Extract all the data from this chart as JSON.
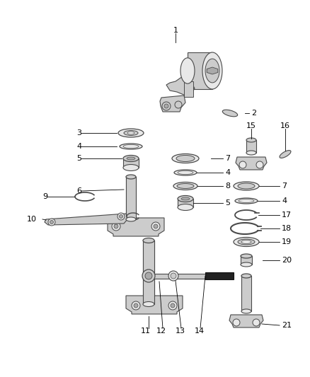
{
  "background_color": "#ffffff",
  "line_color": "#4a4a4a",
  "text_color": "#000000",
  "fig_width": 4.38,
  "fig_height": 5.33,
  "dpi": 100,
  "part_fill": "#cccccc",
  "part_fill_light": "#e8e8e8",
  "part_fill_dark": "#aaaaaa"
}
